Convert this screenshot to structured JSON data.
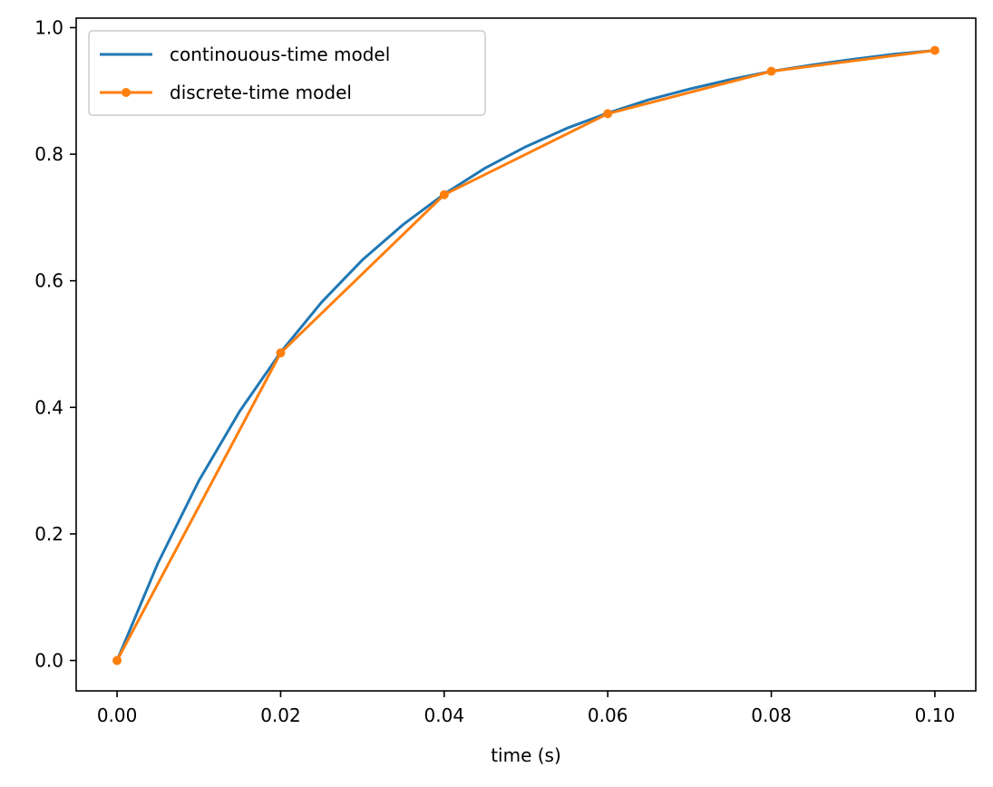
{
  "chart_data": {
    "type": "line",
    "title": "",
    "xlabel": "time (s)",
    "ylabel": "",
    "xlim": [
      -0.005,
      0.105
    ],
    "ylim": [
      -0.048,
      1.015
    ],
    "xticks": [
      0.0,
      0.02,
      0.04,
      0.06,
      0.08,
      0.1
    ],
    "xtick_labels": [
      "0.00",
      "0.02",
      "0.04",
      "0.06",
      "0.08",
      "0.10"
    ],
    "yticks": [
      0.0,
      0.2,
      0.4,
      0.6,
      0.8,
      1.0
    ],
    "ytick_labels": [
      "0.0",
      "0.2",
      "0.4",
      "0.6",
      "0.8",
      "1.0"
    ],
    "grid": false,
    "legend_position": "upper-left",
    "series": [
      {
        "name": "continouous-time model",
        "color": "#1f77b4",
        "marker": "none",
        "x": [
          0.0,
          0.005,
          0.01,
          0.015,
          0.02,
          0.025,
          0.03,
          0.035,
          0.04,
          0.045,
          0.05,
          0.055,
          0.06,
          0.065,
          0.07,
          0.075,
          0.08,
          0.085,
          0.09,
          0.095,
          0.1
        ],
        "y": [
          0.0,
          0.154,
          0.284,
          0.394,
          0.487,
          0.566,
          0.633,
          0.689,
          0.737,
          0.778,
          0.812,
          0.841,
          0.865,
          0.886,
          0.903,
          0.918,
          0.931,
          0.941,
          0.95,
          0.958,
          0.964
        ]
      },
      {
        "name": "discrete-time model",
        "color": "#ff7f0e",
        "marker": "circle",
        "x": [
          0.0,
          0.02,
          0.04,
          0.06,
          0.08,
          0.1
        ],
        "y": [
          0.0,
          0.486,
          0.736,
          0.864,
          0.931,
          0.964
        ]
      }
    ]
  }
}
